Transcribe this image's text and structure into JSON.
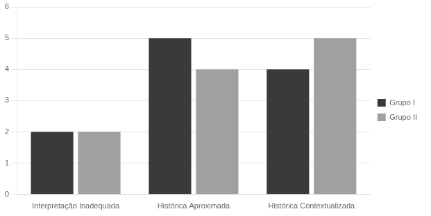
{
  "chart_data": {
    "type": "bar",
    "categories": [
      "Interpretação Inadequada",
      "Histórica Aproximada",
      "Histórica Contextualizada"
    ],
    "series": [
      {
        "name": "Grupo I",
        "color": "#3a3a3a",
        "values": [
          2,
          5,
          4
        ]
      },
      {
        "name": "Grupo II",
        "color": "#a0a0a0",
        "values": [
          2,
          4,
          5
        ]
      }
    ],
    "ylim": [
      0,
      6
    ],
    "yticks": [
      0,
      1,
      2,
      3,
      4,
      5,
      6
    ],
    "grid": true,
    "legend": "right"
  }
}
